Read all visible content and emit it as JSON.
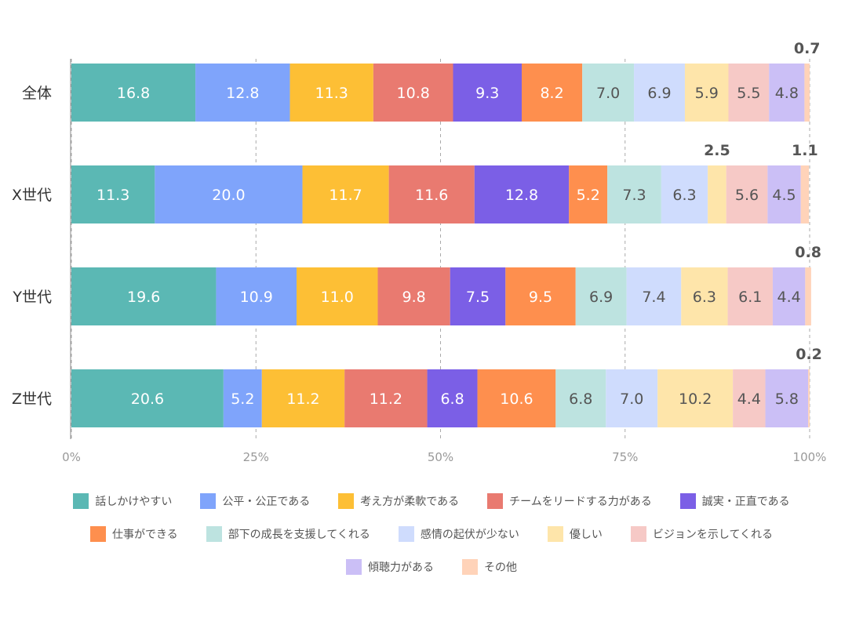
{
  "chart_data": {
    "type": "bar",
    "orientation": "horizontal",
    "stacked": true,
    "categories": [
      "全体",
      "X世代",
      "Y世代",
      "Z世代"
    ],
    "series": [
      {
        "name": "話しかけやすい",
        "color": "#5bb8b4",
        "values": [
          16.8,
          11.3,
          19.6,
          20.6
        ]
      },
      {
        "name": "公平・公正である",
        "color": "#7fa4fb",
        "values": [
          12.8,
          20.0,
          10.9,
          5.2
        ]
      },
      {
        "name": "考え方が柔軟である",
        "color": "#fdbf35",
        "values": [
          11.3,
          11.7,
          11.0,
          11.2
        ]
      },
      {
        "name": "チームをリードする力がある",
        "color": "#e97a70",
        "values": [
          10.8,
          11.6,
          9.8,
          11.2
        ]
      },
      {
        "name": "誠実・正直である",
        "color": "#7b5fe6",
        "values": [
          9.3,
          12.8,
          7.5,
          6.8
        ]
      },
      {
        "name": "仕事ができる",
        "color": "#fe8f4e",
        "values": [
          8.2,
          5.2,
          9.5,
          10.6
        ]
      },
      {
        "name": "部下の成長を支援してくれる",
        "color": "#bde3e0",
        "values": [
          7.0,
          7.3,
          6.9,
          6.8
        ]
      },
      {
        "name": "感情の起伏が少ない",
        "color": "#cfdcfd",
        "values": [
          6.9,
          6.3,
          7.4,
          7.0
        ]
      },
      {
        "name": "優しい",
        "color": "#fee5aa",
        "values": [
          5.9,
          2.5,
          6.3,
          10.2
        ]
      },
      {
        "name": "ビジョンを示してくれる",
        "color": "#f6c9c6",
        "values": [
          5.5,
          5.6,
          6.1,
          4.4
        ]
      },
      {
        "name": "傾聴力がある",
        "color": "#cbbff6",
        "values": [
          4.8,
          4.5,
          4.4,
          5.8
        ]
      },
      {
        "name": "その他",
        "color": "#ffd3b9",
        "values": [
          0.7,
          1.1,
          0.8,
          0.2
        ]
      }
    ],
    "xlim": [
      0,
      100
    ],
    "x_ticks": [
      "0%",
      "25%",
      "50%",
      "75%",
      "100%"
    ],
    "grid": "vertical dashed",
    "legend": "bottom"
  }
}
